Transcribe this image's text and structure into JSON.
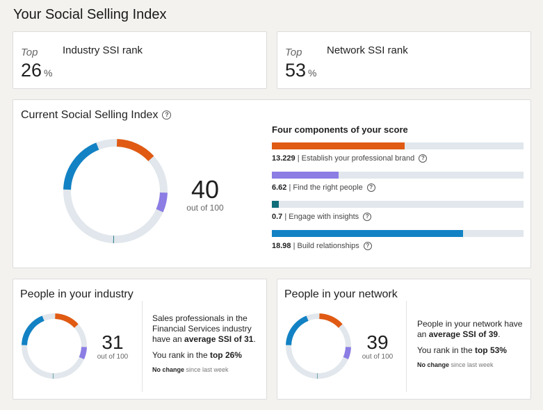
{
  "page": {
    "title": "Your Social Selling Index"
  },
  "industry_rank": {
    "top_label": "Top",
    "name": "Industry SSI rank",
    "value": "26",
    "unit": "%"
  },
  "network_rank": {
    "top_label": "Top",
    "name": "Network SSI rank",
    "value": "53",
    "unit": "%"
  },
  "current": {
    "title": "Current Social Selling Index",
    "score": "40",
    "out_of": "out of 100",
    "components_title": "Four components of your score",
    "max_per_component": 25,
    "components": [
      {
        "value": "13.229",
        "label": "Establish your professional brand",
        "color": "#e05a13",
        "fraction": 0.529
      },
      {
        "value": "6.62",
        "label": "Find the right people",
        "color": "#8b7de4",
        "fraction": 0.265
      },
      {
        "value": "0.7",
        "label": "Engage with insights",
        "color": "#0f6e7a",
        "fraction": 0.028
      },
      {
        "value": "18.98",
        "label": "Build relationships",
        "color": "#1282c4",
        "fraction": 0.759
      }
    ]
  },
  "industry": {
    "title": "People in your industry",
    "score": "31",
    "out_of": "out of 100",
    "desc_1": "Sales professionals in the Financial Services industry have an ",
    "desc_bold": "average SSI of 31",
    "desc_2": ".",
    "rank_text": "You rank in the ",
    "rank_bold": "top 26%",
    "change_bold": "No change",
    "change_text": " since last week"
  },
  "network": {
    "title": "People in your network",
    "score": "39",
    "out_of": "out of 100",
    "desc_1": "People in your network have an ",
    "desc_bold": "average SSI of 39",
    "desc_2": ".",
    "rank_text": "You rank in the ",
    "rank_bold": "top 53%",
    "change_bold": "No change",
    "change_text": " since last week"
  },
  "donut_colors": {
    "track": "#e1e7ec",
    "gap": "#ffffff"
  }
}
